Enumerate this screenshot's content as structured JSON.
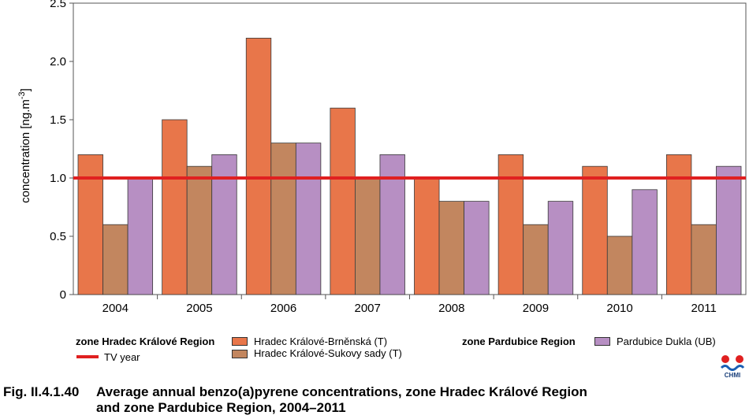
{
  "chart_data": {
    "type": "bar",
    "categories": [
      "2004",
      "2005",
      "2006",
      "2007",
      "2008",
      "2009",
      "2010",
      "2011"
    ],
    "series": [
      {
        "name": "Hradec Králové-Brněnská (T)",
        "color": "#e8764a",
        "values": [
          1.2,
          1.5,
          2.2,
          1.6,
          1.0,
          1.2,
          1.1,
          1.2
        ]
      },
      {
        "name": "Hradec Králové-Sukovy sady (T)",
        "color": "#c2865f",
        "values": [
          0.6,
          1.1,
          1.3,
          1.0,
          0.8,
          0.6,
          0.5,
          0.6
        ]
      },
      {
        "name": "Pardubice Dukla (UB)",
        "color": "#b78fc3",
        "values": [
          1.0,
          1.2,
          1.3,
          1.2,
          0.8,
          0.8,
          0.9,
          1.1
        ]
      }
    ],
    "ylabel_main": "concentration [ng.m",
    "ylabel_sup": "-3",
    "ylabel_end": "]",
    "ylim": [
      0,
      2.5
    ],
    "yticks": [
      "0",
      "0.5",
      "1.0",
      "1.5",
      "2.0",
      "2.5"
    ],
    "reference_line": {
      "label": "TV  year",
      "value": 1.0,
      "color": "#e02020"
    },
    "legend_groups": [
      "zone Hradec Králové Region",
      "zone Pardubice Region"
    ]
  },
  "caption": {
    "number": "Fig. II.4.1.40",
    "line1": "Average annual benzo(a)pyrene concentrations, zone Hradec Králové Region",
    "line2": "and zone Pardubice Region, 2004–2011"
  },
  "logo_text": "CHMI"
}
